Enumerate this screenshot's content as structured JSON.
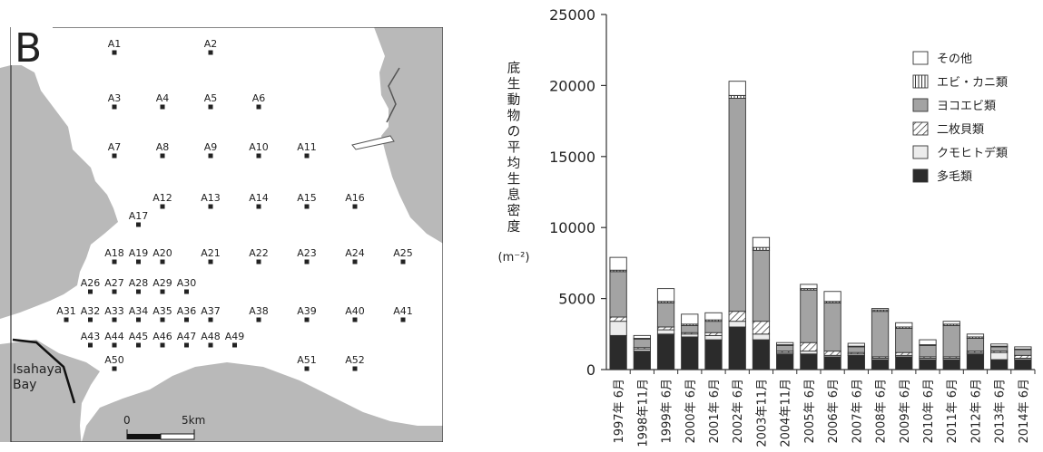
{
  "map": {
    "panel_letter": "B",
    "bay_label": [
      "Isahaya",
      "Bay"
    ],
    "scale_labels": [
      "0",
      "5km"
    ],
    "stations": [
      {
        "id": "A1",
        "row": 0,
        "col": 0
      },
      {
        "id": "A2",
        "row": 0,
        "col": 4
      },
      {
        "id": "A3",
        "row": 1,
        "col": 0
      },
      {
        "id": "A4",
        "row": 1,
        "col": 2
      },
      {
        "id": "A5",
        "row": 1,
        "col": 4
      },
      {
        "id": "A6",
        "row": 1,
        "col": 6
      },
      {
        "id": "A7",
        "row": 2,
        "col": 0
      },
      {
        "id": "A8",
        "row": 2,
        "col": 2
      },
      {
        "id": "A9",
        "row": 2,
        "col": 4
      },
      {
        "id": "A10",
        "row": 2,
        "col": 6
      },
      {
        "id": "A11",
        "row": 2,
        "col": 8
      },
      {
        "id": "A12",
        "row": 3,
        "col": 2
      },
      {
        "id": "A13",
        "row": 3,
        "col": 4
      },
      {
        "id": "A14",
        "row": 3,
        "col": 6
      },
      {
        "id": "A15",
        "row": 3,
        "col": 8
      },
      {
        "id": "A16",
        "row": 3,
        "col": 10
      },
      {
        "id": "A17",
        "row": 3.5,
        "col": 1
      },
      {
        "id": "A18",
        "row": 4,
        "col": 0
      },
      {
        "id": "A19",
        "row": 4,
        "col": 1
      },
      {
        "id": "A20",
        "row": 4,
        "col": 2
      },
      {
        "id": "A21",
        "row": 4,
        "col": 4
      },
      {
        "id": "A22",
        "row": 4,
        "col": 6
      },
      {
        "id": "A23",
        "row": 4,
        "col": 8
      },
      {
        "id": "A24",
        "row": 4,
        "col": 10
      },
      {
        "id": "A25",
        "row": 4,
        "col": 12
      },
      {
        "id": "A26",
        "row": 5,
        "col": -1
      },
      {
        "id": "A27",
        "row": 5,
        "col": 0
      },
      {
        "id": "A28",
        "row": 5,
        "col": 1
      },
      {
        "id": "A29",
        "row": 5,
        "col": 2
      },
      {
        "id": "A30",
        "row": 5,
        "col": 3
      },
      {
        "id": "A31",
        "row": 6,
        "col": -2
      },
      {
        "id": "A32",
        "row": 6,
        "col": -1
      },
      {
        "id": "A33",
        "row": 6,
        "col": 0
      },
      {
        "id": "A34",
        "row": 6,
        "col": 1
      },
      {
        "id": "A35",
        "row": 6,
        "col": 2
      },
      {
        "id": "A36",
        "row": 6,
        "col": 3
      },
      {
        "id": "A37",
        "row": 6,
        "col": 4
      },
      {
        "id": "A38",
        "row": 6,
        "col": 6
      },
      {
        "id": "A39",
        "row": 6,
        "col": 8
      },
      {
        "id": "A40",
        "row": 6,
        "col": 10
      },
      {
        "id": "A41",
        "row": 6,
        "col": 12
      },
      {
        "id": "A43",
        "row": 7,
        "col": -1
      },
      {
        "id": "A44",
        "row": 7,
        "col": 0
      },
      {
        "id": "A45",
        "row": 7,
        "col": 1
      },
      {
        "id": "A46",
        "row": 7,
        "col": 2
      },
      {
        "id": "A47",
        "row": 7,
        "col": 3
      },
      {
        "id": "A48",
        "row": 7,
        "col": 4
      },
      {
        "id": "A49",
        "row": 7,
        "col": 5
      },
      {
        "id": "A50",
        "row": 8,
        "col": 0
      },
      {
        "id": "A51",
        "row": 8,
        "col": 8
      },
      {
        "id": "A52",
        "row": 8,
        "col": 10
      }
    ]
  },
  "chart_data": {
    "type": "bar",
    "stacked": true,
    "title": "",
    "xlabel": "",
    "ylabel": "底生動物の平均生息密度",
    "ylabel_unit": "(m⁻²)",
    "ylim": [
      0,
      25000
    ],
    "yticks": [
      0,
      5000,
      10000,
      15000,
      20000,
      25000
    ],
    "legend_position": "top-right",
    "categories": [
      "1997年 6月",
      "1998年11月",
      "1999年 6月",
      "2000年 6月",
      "2001年 6月",
      "2002年 6月",
      "2003年11月",
      "2004年11月",
      "2005年 6月",
      "2006年 6月",
      "2007年 6月",
      "2008年 6月",
      "2009年 6月",
      "2010年 6月",
      "2011年 6月",
      "2012年 6月",
      "2013年 6月",
      "2014年 6月"
    ],
    "series": [
      {
        "name": "多毛類",
        "color": "#2b2b2b",
        "pattern": "solid",
        "values": [
          2400,
          1300,
          2500,
          2300,
          2100,
          3000,
          2100,
          1100,
          1100,
          900,
          1000,
          700,
          900,
          700,
          700,
          1100,
          700,
          700
        ]
      },
      {
        "name": "クモヒトデ類",
        "color": "#ececec",
        "pattern": "solid",
        "values": [
          1000,
          150,
          300,
          200,
          300,
          400,
          400,
          100,
          200,
          100,
          100,
          100,
          100,
          100,
          100,
          100,
          500,
          100
        ]
      },
      {
        "name": "二枚貝類",
        "color": "#ffffff",
        "pattern": "hatch",
        "values": [
          300,
          100,
          200,
          100,
          200,
          700,
          900,
          100,
          600,
          300,
          100,
          100,
          200,
          100,
          100,
          100,
          100,
          200
        ]
      },
      {
        "name": "ヨコエビ類",
        "color": "#a3a3a3",
        "pattern": "solid",
        "values": [
          3200,
          600,
          1700,
          500,
          800,
          15000,
          5000,
          400,
          3700,
          3400,
          400,
          3200,
          1700,
          800,
          2200,
          900,
          300,
          400
        ]
      },
      {
        "name": "エビ・カニ類",
        "color": "#ffffff",
        "pattern": "vlines",
        "values": [
          100,
          50,
          100,
          100,
          100,
          200,
          200,
          50,
          100,
          100,
          50,
          100,
          100,
          50,
          100,
          100,
          50,
          50
        ]
      },
      {
        "name": "その他",
        "color": "#ffffff",
        "pattern": "solid",
        "values": [
          900,
          200,
          900,
          700,
          500,
          1000,
          700,
          150,
          300,
          700,
          200,
          100,
          300,
          350,
          200,
          200,
          150,
          150
        ]
      }
    ],
    "legend_order": [
      "その他",
      "エビ・カニ類",
      "ヨコエビ類",
      "二枚貝類",
      "クモヒトデ類",
      "多毛類"
    ]
  }
}
